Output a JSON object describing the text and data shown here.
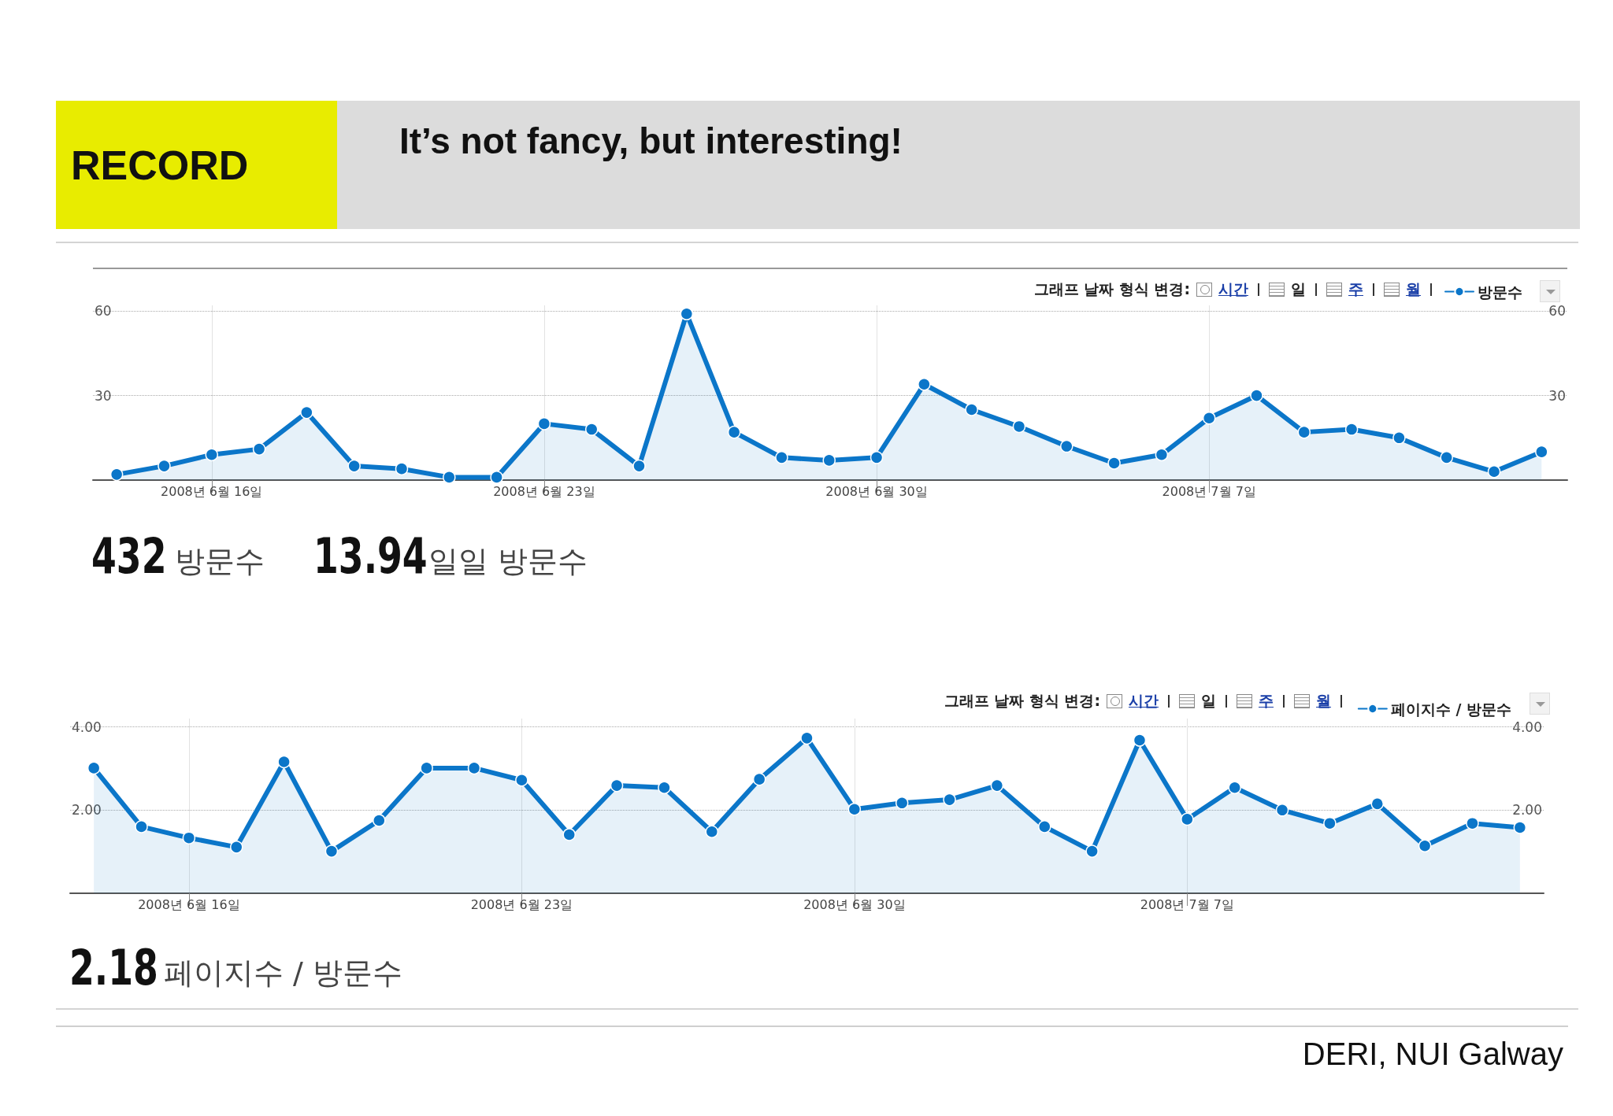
{
  "chart_data": [
    {
      "type": "area",
      "title": "It’s not fancy, but interesting!",
      "annotations": [
        "RECORD",
        "그래프 날짜 형식 변경:",
        "시간",
        "일",
        "주",
        "월",
        "432",
        "방문수",
        "13.94",
        "일일 방문수"
      ],
      "x": [
        "2008-06-14",
        "2008-06-15",
        "2008-06-16",
        "2008-06-17",
        "2008-06-18",
        "2008-06-19",
        "2008-06-20",
        "2008-06-21",
        "2008-06-22",
        "2008-06-23",
        "2008-06-24",
        "2008-06-25",
        "2008-06-26",
        "2008-06-27",
        "2008-06-28",
        "2008-06-29",
        "2008-06-30",
        "2008-07-01",
        "2008-07-02",
        "2008-07-03",
        "2008-07-04",
        "2008-07-05",
        "2008-07-06",
        "2008-07-07",
        "2008-07-08",
        "2008-07-09",
        "2008-07-10",
        "2008-07-11",
        "2008-07-12",
        "2008-07-13",
        "2008-07-14"
      ],
      "series": [
        {
          "name": "방문수",
          "color": "#0b76c9",
          "values": [
            2,
            5,
            9,
            11,
            24,
            5,
            4,
            1,
            1,
            20,
            18,
            5,
            59,
            17,
            8,
            7,
            8,
            34,
            25,
            19,
            12,
            6,
            9,
            22,
            30,
            17,
            18,
            15,
            8,
            3,
            10
          ]
        }
      ],
      "xlim": [
        "2008-06-13T12:00",
        "2008-07-14T13:00"
      ],
      "xticks": [
        {
          "value": "2008-06-16",
          "label": "2008년 6월 16일"
        },
        {
          "value": "2008-06-23",
          "label": "2008년 6월 23일"
        },
        {
          "value": "2008-06-30",
          "label": "2008년 6월 30일"
        },
        {
          "value": "2008-07-07",
          "label": "2008년 7월 7일"
        }
      ],
      "ylim": [
        0,
        62
      ],
      "yticks": [
        30,
        60
      ],
      "y2lim": [
        0,
        62
      ],
      "y2ticks": [
        30,
        60
      ],
      "grid": true,
      "legend": "top right",
      "marker": "circle",
      "line_style": "solid"
    },
    {
      "type": "area",
      "annotations": [
        "그래프 날짜 형식 변경:",
        "시간",
        "일",
        "주",
        "월",
        "2.18",
        "페이지수 / 방문수",
        "DERI, NUI Galway"
      ],
      "x": [
        "2008-06-14",
        "2008-06-15",
        "2008-06-16",
        "2008-06-17",
        "2008-06-18",
        "2008-06-19",
        "2008-06-20",
        "2008-06-21",
        "2008-06-22",
        "2008-06-23",
        "2008-06-24",
        "2008-06-25",
        "2008-06-26",
        "2008-06-27",
        "2008-06-28",
        "2008-06-29",
        "2008-06-30",
        "2008-07-01",
        "2008-07-02",
        "2008-07-03",
        "2008-07-04",
        "2008-07-05",
        "2008-07-06",
        "2008-07-07",
        "2008-07-08",
        "2008-07-09",
        "2008-07-10",
        "2008-07-11",
        "2008-07-12",
        "2008-07-13",
        "2008-07-14"
      ],
      "series": [
        {
          "name": "페이지수 / 방문수",
          "color": "#0b76c9",
          "values": [
            3.01,
            1.6,
            1.33,
            1.11,
            3.16,
            1.01,
            1.75,
            3.01,
            3.01,
            2.72,
            1.41,
            2.59,
            2.54,
            1.48,
            2.74,
            3.73,
            2.02,
            2.17,
            2.25,
            2.59,
            1.6,
            1.01,
            3.68,
            1.78,
            2.54,
            2.0,
            1.68,
            2.15,
            1.14,
            1.68,
            1.58
          ]
        }
      ],
      "xlim": [
        "2008-06-13T12:00",
        "2008-07-14T12:00"
      ],
      "xticks": [
        {
          "value": "2008-06-16",
          "label": "2008년 6월 16일"
        },
        {
          "value": "2008-06-23",
          "label": "2008년 6월 23일"
        },
        {
          "value": "2008-06-30",
          "label": "2008년 6월 30일"
        },
        {
          "value": "2008-07-07",
          "label": "2008년 7월 7일"
        }
      ],
      "ylim": [
        0,
        4.2
      ],
      "yticks": [
        {
          "value": 2,
          "label": "2.00"
        },
        {
          "value": 4,
          "label": "4.00"
        }
      ],
      "y2lim": [
        0,
        4.2
      ],
      "y2ticks": [
        {
          "value": 2,
          "label": "2.00"
        },
        {
          "value": 4,
          "label": "4.00"
        }
      ],
      "grid": true,
      "legend": "top right",
      "marker": "circle",
      "line_style": "solid"
    }
  ]
}
